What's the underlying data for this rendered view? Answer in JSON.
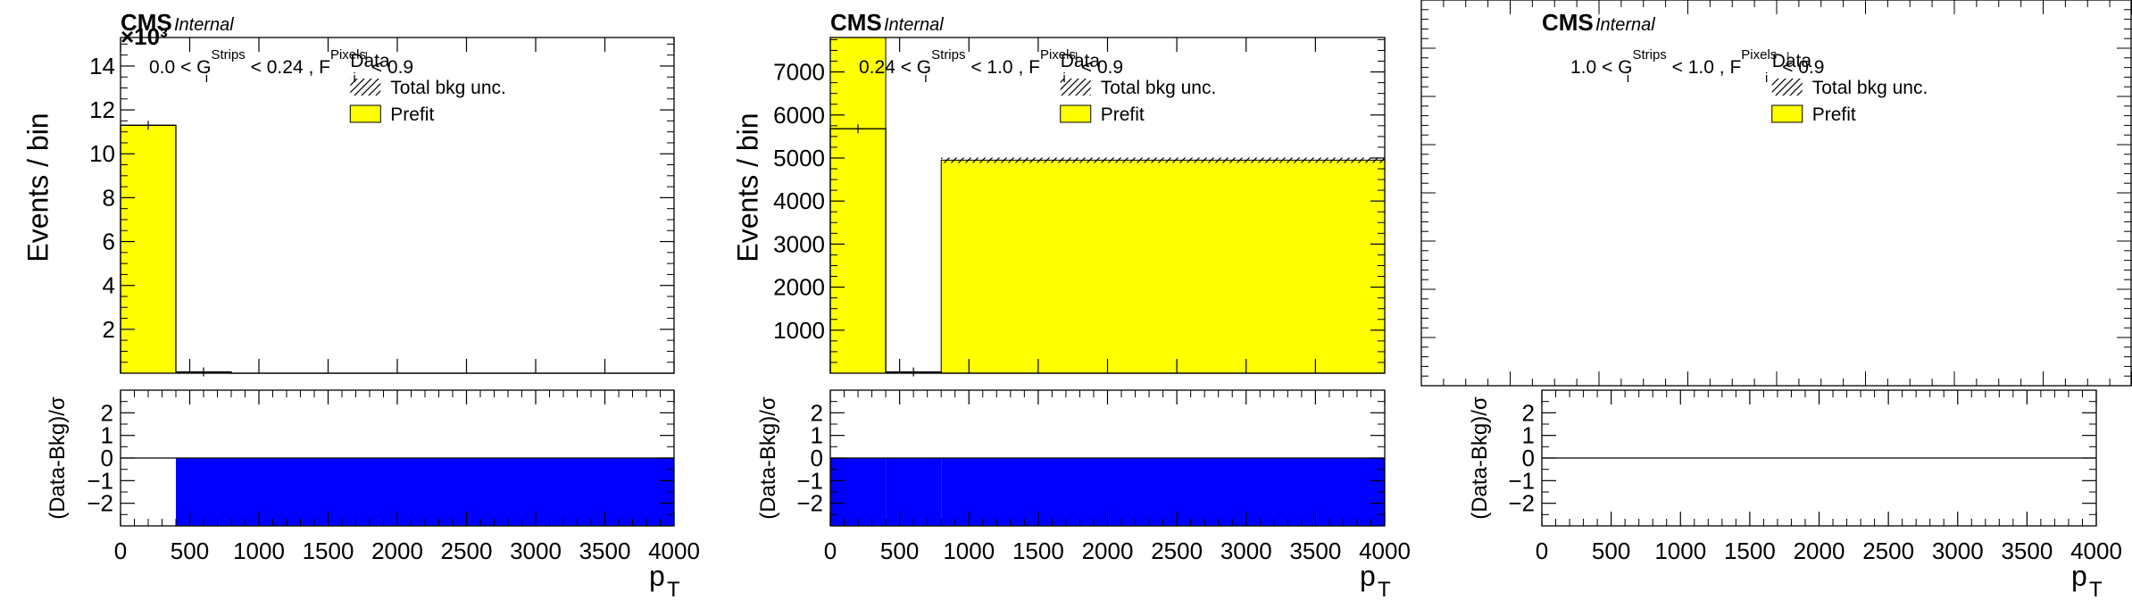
{
  "chart_data": [
    {
      "type": "bar",
      "panel": "left",
      "cms_label": "CMS",
      "internal_label": "Internal",
      "exponent_label": "×10³",
      "cut": {
        "pre": "0.0 < G",
        "sup1": "Strips",
        "mid": " < 0.24 , F",
        "sup2": "Pixels",
        "post": " < 0.9"
      },
      "ylabel": "Events / bin",
      "xlabel": "p",
      "xlabel_sub": "T",
      "ratio_ylabel": "(Data-Bkg)/σ",
      "legend": [
        "Data",
        "Total bkg unc.",
        "Prefit"
      ],
      "xlim": [
        0,
        4000
      ],
      "ylim": [
        0,
        15.3
      ],
      "yticks": [
        2,
        4,
        6,
        8,
        10,
        12,
        14
      ],
      "xticks": [
        0,
        500,
        1000,
        1500,
        2000,
        2500,
        3000,
        3500,
        4000
      ],
      "ratio_ylim": [
        -3,
        3
      ],
      "ratio_yticks": [
        -2,
        -1,
        0,
        1,
        2
      ],
      "bins": [
        0,
        400,
        800,
        4000
      ],
      "prefit": [
        11.3,
        0.05,
        0
      ],
      "data": [
        11.3,
        0.06,
        0
      ],
      "pulls": [
        0,
        -3,
        -3
      ]
    },
    {
      "type": "bar",
      "panel": "middle",
      "cms_label": "CMS",
      "internal_label": "Internal",
      "cut": {
        "pre": "0.24 < G",
        "sup1": "Strips",
        "mid": " < 1.0 , F",
        "sup2": "Pixels",
        "post": " < 0.9"
      },
      "ylabel": "Events / bin",
      "xlabel": "p",
      "xlabel_sub": "T",
      "ratio_ylabel": "(Data-Bkg)/σ",
      "legend": [
        "Data",
        "Total bkg unc.",
        "Prefit"
      ],
      "xlim": [
        0,
        4000
      ],
      "ylim": [
        0,
        7800
      ],
      "yticks": [
        1000,
        2000,
        3000,
        4000,
        5000,
        6000,
        7000
      ],
      "xticks": [
        0,
        500,
        1000,
        1500,
        2000,
        2500,
        3000,
        3500,
        4000
      ],
      "ratio_ylim": [
        -3,
        3
      ],
      "ratio_yticks": [
        -2,
        -1,
        0,
        1,
        2
      ],
      "bins": [
        0,
        400,
        800,
        4000
      ],
      "prefit": [
        7800,
        10,
        4950
      ],
      "unc": [
        0,
        0,
        60
      ],
      "data": [
        5680,
        30,
        0
      ],
      "pulls": [
        -3,
        -3,
        -3
      ]
    },
    {
      "type": "bar",
      "panel": "right",
      "cms_label": "CMS",
      "internal_label": "Internal",
      "cut": {
        "pre": "1.0 < G",
        "sup1": "Strips",
        "mid": " < 1.0 , F",
        "sup2": "Pixels",
        "post": " < 0.9"
      },
      "xlabel": "p",
      "xlabel_sub": "T",
      "ratio_ylabel": "(Data-Bkg)/σ",
      "legend": [
        "Data",
        "Total bkg unc.",
        "Prefit"
      ],
      "xlim": [
        0,
        4000
      ],
      "xticks": [
        0,
        500,
        1000,
        1500,
        2000,
        2500,
        3000,
        3500,
        4000
      ],
      "ratio_ylim": [
        -3,
        3
      ],
      "ratio_yticks": [
        -2,
        -1,
        0,
        1,
        2
      ],
      "pulls": [
        0,
        0,
        0
      ]
    }
  ],
  "colors": {
    "prefit": "#ffff00",
    "pull": "#0000ff",
    "frame": "#000000"
  }
}
